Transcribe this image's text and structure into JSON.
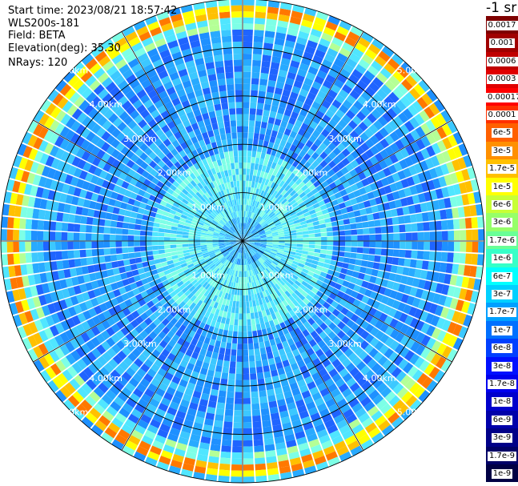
{
  "header": {
    "start_time": "Start time: 2023/08/21 18:57:42",
    "instrument": "WLS200s-181",
    "field": "Field: BETA",
    "elevation": "Elevation(deg): 35.30",
    "nrays": "NRays: 120"
  },
  "colorbar": {
    "unit_label": "-1 sr",
    "labels": [
      "0.0017",
      "0.001",
      "0.0006",
      "0.0003",
      "0.00017",
      "0.0001",
      "6e-5",
      "3e-5",
      "1.7e-5",
      "1e-5",
      "6e-6",
      "3e-6",
      "1.7e-6",
      "1e-6",
      "6e-7",
      "3e-7",
      "1.7e-7",
      "1e-7",
      "6e-8",
      "3e-8",
      "1.7e-8",
      "1e-8",
      "6e-9",
      "3e-9",
      "1.7e-9",
      "1e-9"
    ],
    "colors": [
      "#7f0000",
      "#a00000",
      "#c00000",
      "#e00000",
      "#ff0000",
      "#ff3000",
      "#ff6000",
      "#ff9000",
      "#ffc000",
      "#ffff00",
      "#c8ff36",
      "#96ff69",
      "#69ff96",
      "#36ffc8",
      "#00ffff",
      "#00d0ff",
      "#00a0ff",
      "#0070ff",
      "#0040ff",
      "#0010ff",
      "#0000ee",
      "#0000cc",
      "#0000aa",
      "#000088",
      "#000066",
      "#000044"
    ]
  },
  "range_rings": {
    "labels": [
      "1.00km",
      "2.00km",
      "3.00km",
      "4.00km",
      "5.00km"
    ]
  },
  "map": {
    "nrays": 120,
    "max_range_km": 5.0,
    "palette": [
      "#0000d8",
      "#0a3cff",
      "#1f64ff",
      "#1e90ff",
      "#28aaff",
      "#3cc8ff",
      "#50e6ff",
      "#7dffe6",
      "#b4ff96",
      "#ffff00",
      "#ffc000",
      "#ff7800",
      "#ff3000"
    ]
  }
}
